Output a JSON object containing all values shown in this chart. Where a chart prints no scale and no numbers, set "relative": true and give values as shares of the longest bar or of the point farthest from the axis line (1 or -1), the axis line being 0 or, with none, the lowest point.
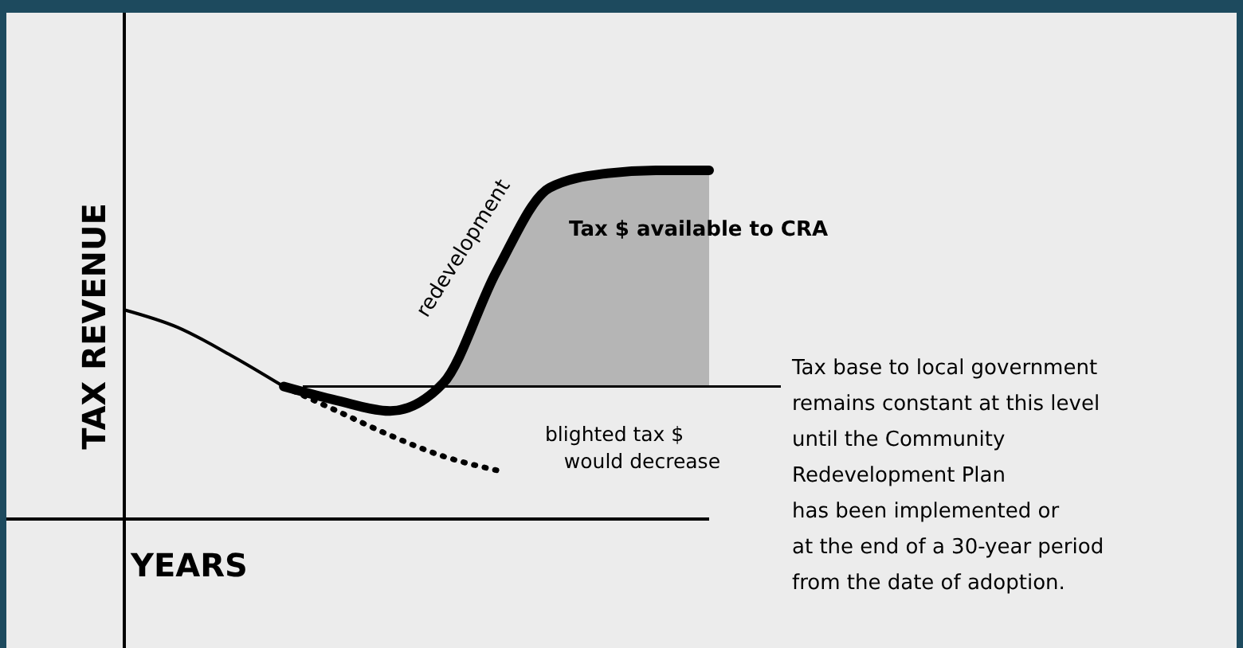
{
  "chart_data": {
    "type": "line",
    "relative": true,
    "ylabel": "TAX REVENUE",
    "xlabel": "YEARS",
    "categories": [
      null,
      null,
      null,
      null,
      null,
      null,
      null,
      null,
      null,
      null,
      null,
      null
    ],
    "series": [
      {
        "color": "#000000",
        "values": [
          0.6,
          0.55,
          0.47,
          0.38,
          null,
          null,
          null,
          null,
          null,
          null,
          null,
          null
        ]
      },
      {
        "color": "#000000",
        "values": [
          null,
          null,
          null,
          0.38,
          0.34,
          0.31,
          0.39,
          0.71,
          0.95,
          0.99,
          1.0,
          1.0
        ],
        "lower": [
          null,
          null,
          null,
          null,
          null,
          null,
          0.38,
          0.38,
          0.38,
          0.38,
          0.38,
          0.38
        ],
        "upper": [
          null,
          null,
          null,
          null,
          null,
          null,
          0.39,
          0.71,
          0.95,
          0.99,
          1.0,
          1.0
        ]
      },
      {
        "color": "#000000",
        "line_style": "dotted",
        "values": [
          null,
          null,
          null,
          0.38,
          0.31,
          0.24,
          0.18,
          0.14,
          null,
          null,
          null,
          null
        ]
      }
    ],
    "ref_lines": [
      {
        "axis": "y",
        "value": 0.38,
        "label": "Tax base to local government\nremains constant at this level\nuntil the Community\nRedevelopment Plan\nhas been implemented or\nat the end of a 30-year period\nfrom the date of adoption."
      }
    ],
    "annotations": [
      "redevelopment",
      "Tax $ available to CRA",
      "blighted tax $\n   would decrease"
    ],
    "marker": "none"
  }
}
